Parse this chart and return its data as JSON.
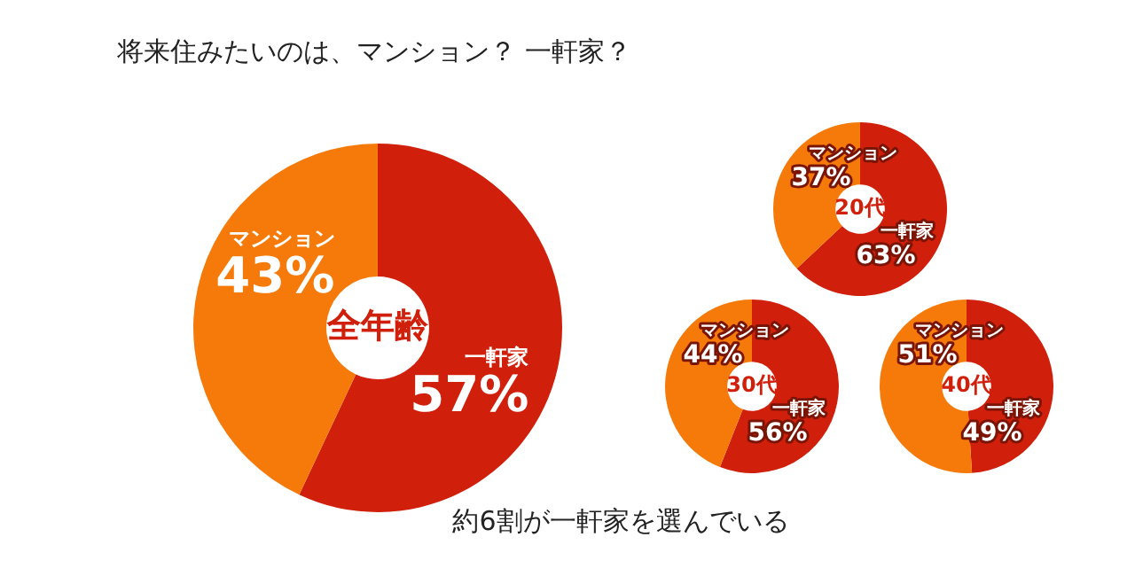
{
  "chart_data": [
    {
      "type": "other",
      "title": "将来住みたいのは、マンション？ 一軒家？",
      "annotations": [
        "約6割が一軒家を選んでいる"
      ]
    },
    {
      "type": "donut",
      "title": "全年齢",
      "categories": [
        "一軒家",
        "マンション"
      ],
      "values": [
        57,
        43
      ],
      "value_labels": [
        "57%",
        "43%"
      ],
      "colors": [
        "#d0200c",
        "#f57a0a"
      ]
    },
    {
      "type": "donut",
      "title": "20代",
      "categories": [
        "一軒家",
        "マンション"
      ],
      "values": [
        63,
        37
      ],
      "value_labels": [
        "63%",
        "37%"
      ],
      "colors": [
        "#d0200c",
        "#f57a0a"
      ]
    },
    {
      "type": "donut",
      "title": "30代",
      "categories": [
        "一軒家",
        "マンション"
      ],
      "values": [
        56,
        44
      ],
      "value_labels": [
        "56%",
        "44%"
      ],
      "colors": [
        "#d0200c",
        "#f57a0a"
      ]
    },
    {
      "type": "donut",
      "title": "40代",
      "categories": [
        "一軒家",
        "マンション"
      ],
      "values": [
        49,
        51
      ],
      "value_labels": [
        "49%",
        "51%"
      ],
      "colors": [
        "#d0200c",
        "#f57a0a"
      ]
    }
  ]
}
